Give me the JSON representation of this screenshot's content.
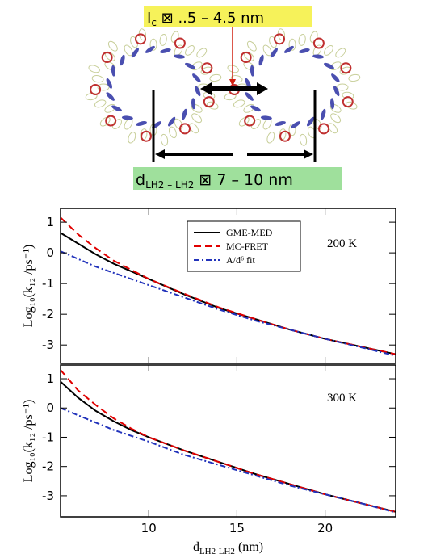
{
  "diagram": {
    "top_label": {
      "main": "I",
      "sub": "c",
      "rest": " ⊠ ..5 – 4.5 nm"
    },
    "bottom_label": {
      "main": "d",
      "sub": "LH2 – LH2",
      "rest": " ⊠ 7 – 10 nm"
    }
  },
  "chart_data": [
    {
      "type": "line",
      "y_label": "Log₁₀(k₁₂ /ps⁻¹)",
      "annotation": "200 K",
      "legend": "upper center",
      "xtick_labels": false,
      "x": [
        5,
        6,
        7,
        8,
        9,
        10,
        12,
        14,
        16,
        18,
        20,
        22,
        24
      ],
      "xlim": [
        5,
        24
      ],
      "xticks": [
        10,
        15,
        20
      ],
      "ylim": [
        -3.6,
        1.45
      ],
      "yticks": [
        -3,
        -2,
        -1,
        0,
        1
      ],
      "series": [
        {
          "name": "GME-MED",
          "color": "#000000",
          "style": "solid",
          "values": [
            0.65,
            0.3,
            -0.05,
            -0.35,
            -0.6,
            -0.85,
            -1.35,
            -1.8,
            -2.15,
            -2.5,
            -2.8,
            -3.05,
            -3.3
          ]
        },
        {
          "name": "MC-FRET",
          "color": "#e00000",
          "style": "dashed",
          "values": [
            1.15,
            0.6,
            0.15,
            -0.25,
            -0.55,
            -0.85,
            -1.33,
            -1.78,
            -2.15,
            -2.5,
            -2.8,
            -3.05,
            -3.3
          ]
        },
        {
          "name": "A/d⁶ fit",
          "color": "#2233bb",
          "style": "dashdot",
          "values": [
            0.05,
            -0.2,
            -0.45,
            -0.65,
            -0.85,
            -1.05,
            -1.45,
            -1.85,
            -2.2,
            -2.5,
            -2.8,
            -3.07,
            -3.35
          ]
        }
      ]
    },
    {
      "type": "line",
      "y_label": "Log₁₀(k₁₂ /ps⁻¹)",
      "annotation": "300 K",
      "xtick_labels": true,
      "x_label": [
        "d",
        "LH2-LH2",
        " (nm)"
      ],
      "x": [
        5,
        6,
        7,
        8,
        9,
        10,
        12,
        14,
        16,
        18,
        20,
        22,
        24
      ],
      "xlim": [
        5,
        24
      ],
      "xticks": [
        10,
        15,
        20
      ],
      "ylim": [
        -3.72,
        1.47
      ],
      "yticks": [
        -3,
        -2,
        -1,
        0,
        1
      ],
      "series": [
        {
          "color": "#000000",
          "style": "solid",
          "values": [
            0.9,
            0.35,
            -0.1,
            -0.45,
            -0.75,
            -1.0,
            -1.45,
            -1.85,
            -2.25,
            -2.6,
            -2.95,
            -3.25,
            -3.55
          ]
        },
        {
          "color": "#e00000",
          "style": "dashed",
          "values": [
            1.3,
            0.6,
            0.1,
            -0.35,
            -0.7,
            -1.0,
            -1.45,
            -1.85,
            -2.25,
            -2.6,
            -2.95,
            -3.25,
            -3.55
          ]
        },
        {
          "color": "#2233bb",
          "style": "dashdot",
          "values": [
            0.0,
            -0.25,
            -0.5,
            -0.75,
            -0.95,
            -1.15,
            -1.6,
            -1.95,
            -2.3,
            -2.65,
            -2.95,
            -3.25,
            -3.57
          ]
        }
      ]
    }
  ]
}
